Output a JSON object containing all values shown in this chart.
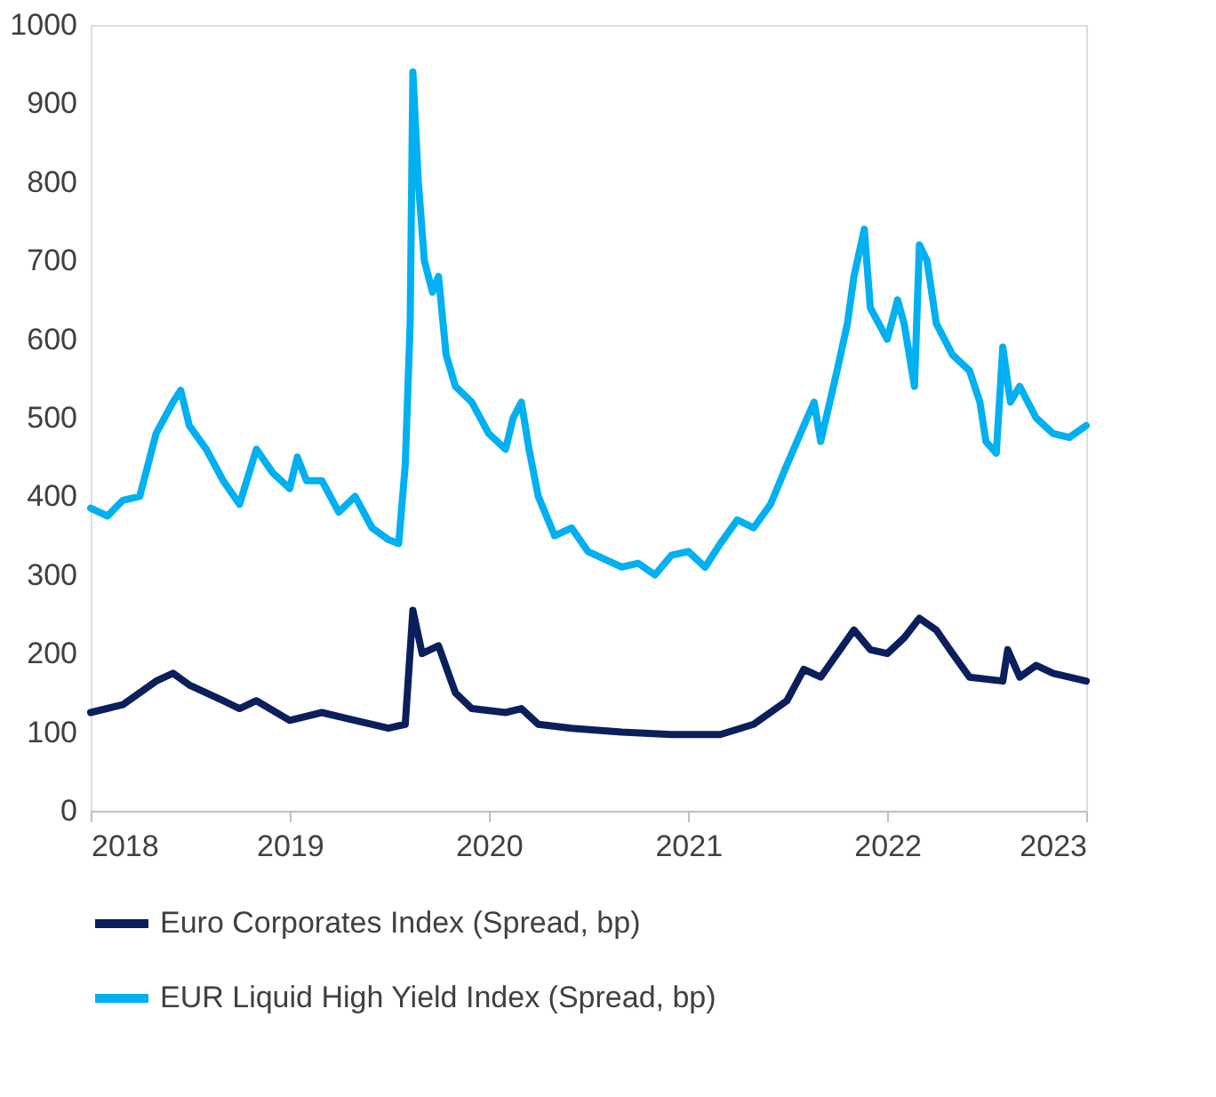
{
  "chart_data": {
    "type": "line",
    "ylim": [
      0,
      1000
    ],
    "yticks": [
      0,
      100,
      200,
      300,
      400,
      500,
      600,
      700,
      800,
      900,
      1000
    ],
    "xlim": [
      "2018-01-01",
      "2023-01-01"
    ],
    "xticks": [
      {
        "value": "2018-01-01",
        "label": "2018"
      },
      {
        "value": "2019-01-01",
        "label": "2019"
      },
      {
        "value": "2020-01-01",
        "label": "2020"
      },
      {
        "value": "2021-01-01",
        "label": "2021"
      },
      {
        "value": "2022-01-01",
        "label": "2022"
      },
      {
        "value": "2023-01-01",
        "label": "2023"
      }
    ],
    "grid": false,
    "legend": "bottom",
    "marker": "none",
    "line_style": "solid",
    "series": [
      {
        "name": "Euro Corporates Index (Spread, bp)",
        "color": "#0a1f5c",
        "x": [
          "2018-01-01",
          "2018-03-01",
          "2018-05-01",
          "2018-06-01",
          "2018-07-01",
          "2018-09-01",
          "2018-10-01",
          "2018-11-01",
          "2019-01-01",
          "2019-03-01",
          "2019-05-01",
          "2019-07-01",
          "2019-08-01",
          "2019-08-15",
          "2019-09-01",
          "2019-10-01",
          "2019-11-01",
          "2019-12-01",
          "2020-02-01",
          "2020-03-01",
          "2020-04-01",
          "2020-06-01",
          "2020-09-01",
          "2020-12-01",
          "2021-03-01",
          "2021-05-01",
          "2021-07-01",
          "2021-08-01",
          "2021-09-01",
          "2021-11-01",
          "2021-12-01",
          "2022-01-01",
          "2022-02-01",
          "2022-03-01",
          "2022-04-01",
          "2022-05-01",
          "2022-06-01",
          "2022-08-01",
          "2022-08-10",
          "2022-09-01",
          "2022-10-01",
          "2022-11-01",
          "2023-01-01"
        ],
        "values": [
          125,
          135,
          165,
          175,
          160,
          140,
          130,
          140,
          115,
          125,
          115,
          105,
          110,
          255,
          200,
          210,
          150,
          130,
          125,
          130,
          110,
          105,
          100,
          97,
          97,
          110,
          140,
          180,
          170,
          230,
          205,
          200,
          220,
          245,
          230,
          200,
          170,
          165,
          205,
          170,
          185,
          175,
          165
        ]
      },
      {
        "name": "EUR Liquid High Yield Index (Spread, bp)",
        "color": "#00b0f0",
        "x": [
          "2018-01-01",
          "2018-02-01",
          "2018-03-01",
          "2018-04-01",
          "2018-05-01",
          "2018-06-01",
          "2018-06-15",
          "2018-07-01",
          "2018-08-01",
          "2018-09-01",
          "2018-10-01",
          "2018-11-01",
          "2018-12-01",
          "2019-01-01",
          "2019-01-15",
          "2019-02-01",
          "2019-03-01",
          "2019-04-01",
          "2019-05-01",
          "2019-06-01",
          "2019-07-01",
          "2019-07-20",
          "2019-08-01",
          "2019-08-10",
          "2019-08-15",
          "2019-08-25",
          "2019-09-05",
          "2019-09-20",
          "2019-10-01",
          "2019-10-15",
          "2019-11-01",
          "2019-12-01",
          "2020-01-01",
          "2020-02-01",
          "2020-02-15",
          "2020-03-01",
          "2020-03-15",
          "2020-04-01",
          "2020-05-01",
          "2020-06-01",
          "2020-07-01",
          "2020-08-01",
          "2020-09-01",
          "2020-10-01",
          "2020-11-01",
          "2020-12-01",
          "2021-01-01",
          "2021-02-01",
          "2021-03-01",
          "2021-04-01",
          "2021-05-01",
          "2021-06-01",
          "2021-07-01",
          "2021-08-01",
          "2021-08-20",
          "2021-09-01",
          "2021-10-01",
          "2021-10-20",
          "2021-11-01",
          "2021-11-20",
          "2021-12-01",
          "2022-01-01",
          "2022-01-20",
          "2022-02-01",
          "2022-02-20",
          "2022-03-01",
          "2022-03-15",
          "2022-04-01",
          "2022-05-01",
          "2022-06-01",
          "2022-06-20",
          "2022-07-01",
          "2022-07-20",
          "2022-08-01",
          "2022-08-15",
          "2022-09-01",
          "2022-10-01",
          "2022-11-01",
          "2022-12-01",
          "2023-01-01"
        ],
        "values": [
          385,
          375,
          395,
          400,
          480,
          520,
          535,
          490,
          460,
          420,
          390,
          460,
          430,
          410,
          450,
          420,
          420,
          380,
          400,
          360,
          345,
          340,
          440,
          620,
          940,
          800,
          700,
          660,
          680,
          580,
          540,
          520,
          480,
          460,
          500,
          520,
          460,
          400,
          350,
          360,
          330,
          320,
          310,
          315,
          300,
          325,
          330,
          310,
          340,
          370,
          360,
          390,
          440,
          490,
          520,
          470,
          560,
          620,
          680,
          740,
          640,
          600,
          650,
          620,
          540,
          720,
          700,
          620,
          580,
          560,
          520,
          470,
          455,
          590,
          520,
          540,
          500,
          480,
          475,
          490
        ]
      }
    ]
  }
}
